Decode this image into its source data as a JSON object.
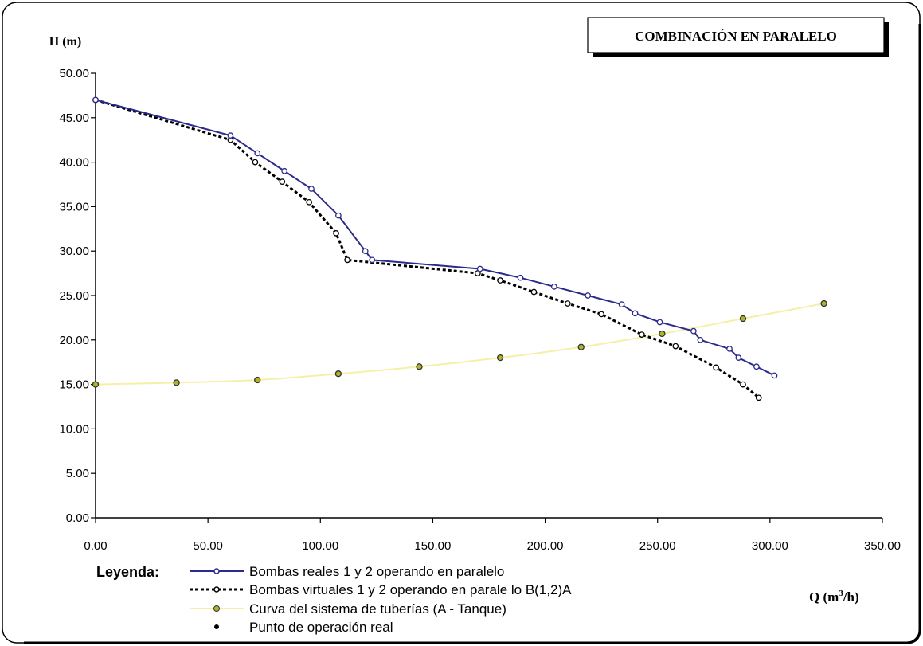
{
  "chart_data": {
    "type": "line",
    "title": "COMBINACIÓN EN PARALELO",
    "ylabel": "H (m)",
    "xlabel_main": "Q (m",
    "xlabel_sup": "3",
    "xlabel_end": "/h)",
    "xlim": [
      0,
      350
    ],
    "ylim": [
      0,
      50
    ],
    "x_ticks": [
      "0.00",
      "50.00",
      "100.00",
      "150.00",
      "200.00",
      "250.00",
      "300.00",
      "350.00"
    ],
    "y_ticks": [
      "0.00",
      "5.00",
      "10.00",
      "15.00",
      "20.00",
      "25.00",
      "30.00",
      "35.00",
      "40.00",
      "45.00",
      "50.00"
    ],
    "legend_title": "Leyenda:",
    "colors": {
      "real": "#2b2b8c",
      "virtual": "#000000",
      "system": "#f5f0a8",
      "marker_fill": "#b3b32a"
    },
    "series": [
      {
        "name": "Bombas reales 1 y 2 operando en paralelo",
        "style": "solid-line-open-circles",
        "x": [
          0,
          60,
          72,
          84,
          96,
          108,
          120,
          123,
          171,
          189,
          204,
          219,
          234,
          240,
          251,
          266,
          269,
          282,
          286,
          294,
          302
        ],
        "y": [
          47,
          43,
          41,
          39,
          37,
          34,
          30,
          29,
          28,
          27,
          26,
          25,
          24,
          23,
          22,
          21,
          20,
          19,
          18,
          17,
          16
        ]
      },
      {
        "name": "Bombas virtuales 1 y 2 operando en parale lo B(1,2)A",
        "style": "dotted-line-open-circles",
        "x": [
          0,
          60,
          71,
          83,
          95,
          107,
          112,
          170,
          180,
          195,
          210,
          225,
          243,
          258,
          276,
          288,
          295
        ],
        "y": [
          47,
          42.5,
          40,
          37.8,
          35.5,
          32,
          29,
          27.5,
          26.7,
          25.4,
          24.1,
          22.9,
          20.6,
          19.3,
          16.9,
          15,
          13.5
        ]
      },
      {
        "name": "Curva del sistema de tuberías (A  - Tanque)",
        "style": "thin-line-filled-markers",
        "x": [
          0,
          36,
          72,
          108,
          144,
          180,
          216,
          252,
          288,
          324
        ],
        "y": [
          15,
          15.2,
          15.5,
          16.2,
          17,
          18,
          19.2,
          20.7,
          22.4,
          24.1
        ]
      }
    ],
    "operating_point_label": "Punto de operación real"
  }
}
